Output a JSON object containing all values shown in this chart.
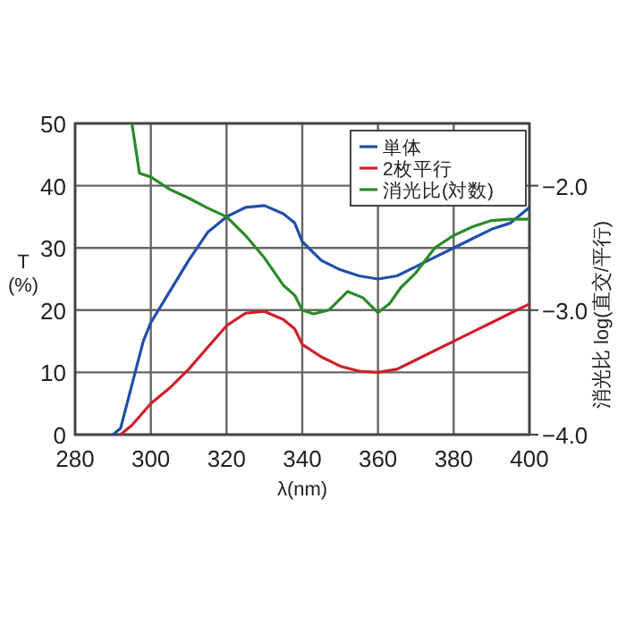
{
  "chart_data": {
    "type": "line",
    "xlabel": "λ(nm)",
    "ylabel": "T (%)",
    "y2label": "消光比 log(直交/平行)",
    "xlim": [
      280,
      400
    ],
    "xticks": [
      280,
      300,
      320,
      340,
      360,
      380,
      400
    ],
    "ylim": [
      0,
      50
    ],
    "yticks": [
      0,
      10,
      20,
      30,
      40,
      50
    ],
    "y2lim": [
      -4,
      -1.5
    ],
    "y2ticks": [
      {
        "value": -2,
        "label": "−2.0"
      },
      {
        "value": -3,
        "label": "−3.0"
      },
      {
        "value": -4,
        "label": "−4.0"
      }
    ],
    "grid": true,
    "legend": "top right",
    "line_style": "solid",
    "marker": "none",
    "series": [
      {
        "name": "単体",
        "color": "#1f4fa8",
        "x": [
          290,
          292,
          295,
          298,
          300,
          305,
          310,
          315,
          320,
          325,
          330,
          335,
          338,
          340,
          345,
          350,
          355,
          360,
          365,
          370,
          375,
          380,
          385,
          390,
          395,
          400
        ],
        "values": [
          0,
          1,
          8,
          15,
          18,
          23,
          28,
          32.5,
          35,
          36.5,
          36.8,
          35.5,
          34,
          31,
          28,
          26.5,
          25.5,
          25,
          25.5,
          27,
          28.5,
          30,
          31.5,
          33,
          34,
          36.5
        ]
      },
      {
        "name": "2枚平行",
        "color": "#d0202a",
        "x": [
          292,
          295,
          300,
          305,
          310,
          315,
          320,
          325,
          330,
          335,
          338,
          340,
          345,
          350,
          355,
          360,
          365,
          370,
          375,
          380,
          385,
          390,
          395,
          400
        ],
        "values": [
          0,
          1.5,
          5,
          7.5,
          10.5,
          14,
          17.5,
          19.5,
          19.8,
          18.5,
          17,
          14.5,
          12.5,
          11,
          10.2,
          10,
          10.5,
          12,
          13.5,
          15,
          16.5,
          18,
          19.5,
          21
        ]
      },
      {
        "name": "消光比(対数)",
        "color": "#2a8a2a",
        "axis": "y2",
        "x": [
          295,
          297,
          300,
          305,
          310,
          315,
          320,
          325,
          330,
          335,
          338,
          340,
          343,
          347,
          352,
          356,
          360,
          363,
          366,
          370,
          375,
          380,
          385,
          390,
          395,
          400
        ],
        "values": [
          -1.5,
          -1.9,
          -1.93,
          -2.03,
          -2.1,
          -2.18,
          -2.25,
          -2.4,
          -2.58,
          -2.8,
          -2.88,
          -3.0,
          -3.03,
          -3.0,
          -2.85,
          -2.9,
          -3.02,
          -2.95,
          -2.82,
          -2.7,
          -2.5,
          -2.4,
          -2.33,
          -2.28,
          -2.27,
          -2.27
        ]
      }
    ]
  }
}
